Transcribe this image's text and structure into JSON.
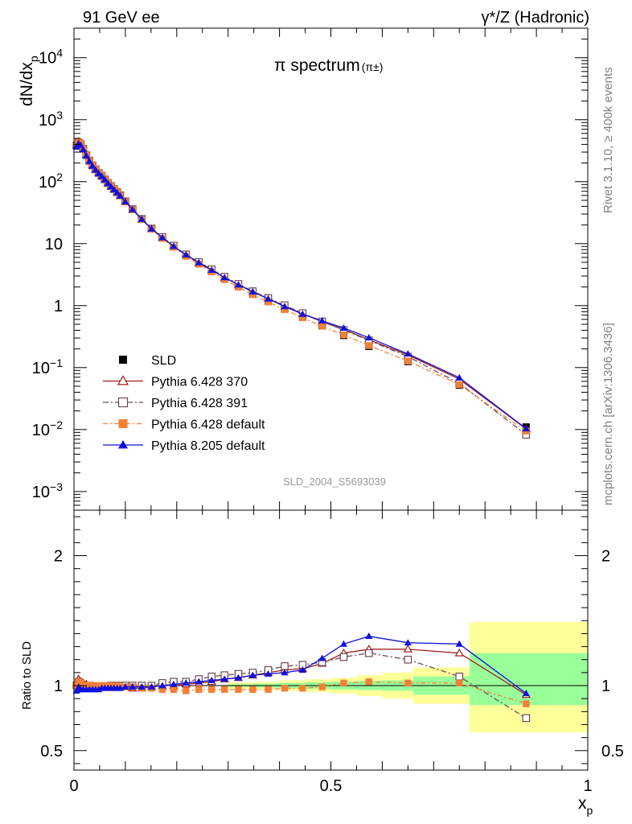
{
  "header": {
    "left": "91 GeV ee",
    "right_sup_label": "γ*/Z (Hadronic)"
  },
  "side_labels": {
    "top": "Rivet 3.1.10, ≥ 400k events",
    "bottom": "mcplots.cern.ch [arXiv:1306.3436]"
  },
  "chart_data": {
    "type": "line",
    "title": "π spectrum",
    "title_sub": "(π±)",
    "xlabel": "x",
    "xlabel_sub": "p",
    "ylabel": "dN/dx",
    "ylabel_sub": "p",
    "ratio_ylabel": "Ratio to SLD",
    "watermark": "SLD_2004_S5693039",
    "xlim": [
      0,
      1
    ],
    "ylim_log": [
      0.0005,
      30000
    ],
    "ratio_ylim": [
      0.35,
      2.35
    ],
    "x_ticks": [
      {
        "v": 0,
        "label": "0"
      },
      {
        "v": 0.5,
        "label": "0.5"
      },
      {
        "v": 1,
        "label": "1"
      }
    ],
    "y_ticks": [
      {
        "v": 0.001,
        "m": "10",
        "e": "−3"
      },
      {
        "v": 0.01,
        "m": "10",
        "e": "−2"
      },
      {
        "v": 0.1,
        "m": "10",
        "e": "−1"
      },
      {
        "v": 1,
        "m": "1",
        "e": ""
      },
      {
        "v": 10,
        "m": "10",
        "e": ""
      },
      {
        "v": 100,
        "m": "10",
        "e": "2"
      },
      {
        "v": 1000,
        "m": "10",
        "e": "3"
      },
      {
        "v": 10000,
        "m": "10",
        "e": "4"
      }
    ],
    "ratio_ticks": [
      {
        "v": 0.5,
        "label": "0.5"
      },
      {
        "v": 1,
        "label": "1"
      },
      {
        "v": 2,
        "label": "2"
      }
    ],
    "x": [
      0.005,
      0.009,
      0.013,
      0.018,
      0.024,
      0.03,
      0.036,
      0.042,
      0.048,
      0.054,
      0.06,
      0.066,
      0.072,
      0.078,
      0.084,
      0.09,
      0.1,
      0.114,
      0.132,
      0.151,
      0.172,
      0.194,
      0.218,
      0.243,
      0.268,
      0.293,
      0.32,
      0.348,
      0.378,
      0.41,
      0.445,
      0.483,
      0.525,
      0.574,
      0.65,
      0.75,
      0.88
    ],
    "sld": [
      380,
      420,
      400,
      340,
      270,
      220,
      185,
      160,
      140,
      125,
      110,
      96,
      85,
      76,
      68,
      60,
      48,
      36,
      25,
      17.5,
      12.5,
      9,
      6.5,
      4.8,
      3.6,
      2.7,
      2.05,
      1.55,
      1.18,
      0.88,
      0.65,
      0.47,
      0.33,
      0.22,
      0.125,
      0.052,
      0.011
    ],
    "band_edges": [
      0.3,
      0.35,
      0.4,
      0.45,
      0.5,
      0.55,
      0.6,
      0.66,
      0.77,
      1.0
    ],
    "stat_band": [
      [
        0.99,
        1.01
      ],
      [
        0.985,
        1.015
      ],
      [
        0.98,
        1.02
      ],
      [
        0.975,
        1.025
      ],
      [
        0.97,
        1.03
      ],
      [
        0.965,
        1.035
      ],
      [
        0.96,
        1.04
      ],
      [
        0.93,
        1.07
      ],
      [
        0.85,
        1.25
      ]
    ],
    "syst_band": [
      [
        0.975,
        1.025
      ],
      [
        0.97,
        1.03
      ],
      [
        0.96,
        1.04
      ],
      [
        0.95,
        1.05
      ],
      [
        0.94,
        1.06
      ],
      [
        0.92,
        1.08
      ],
      [
        0.9,
        1.1
      ],
      [
        0.86,
        1.14
      ],
      [
        0.64,
        1.49
      ]
    ],
    "legend": [
      {
        "name": "SLD"
      },
      {
        "name": "Pythia 6.428 370"
      },
      {
        "name": "Pythia 6.428 391"
      },
      {
        "name": "Pythia 6.428 default"
      },
      {
        "name": "Pythia 8.205 default"
      }
    ],
    "series": [
      {
        "name": "Pythia 6.428 370",
        "color": "#a01c1c",
        "dash": "none",
        "marker": "tri-open",
        "ratios": [
          1.02,
          1.05,
          1.03,
          1.02,
          1.01,
          1.0,
          1.0,
          0.99,
          0.99,
          0.99,
          0.99,
          0.99,
          0.99,
          0.99,
          0.99,
          0.99,
          0.99,
          0.98,
          0.98,
          0.99,
          1.0,
          1.0,
          1.01,
          1.02,
          1.03,
          1.05,
          1.06,
          1.08,
          1.1,
          1.12,
          1.13,
          1.17,
          1.25,
          1.28,
          1.28,
          1.25,
          0.93
        ]
      },
      {
        "name": "Pythia 6.428 391",
        "color": "#6e4a5c",
        "dash": "7 3 2 3",
        "marker": "sq-open",
        "ratios": [
          1.0,
          1.03,
          1.01,
          1.0,
          0.99,
          0.99,
          0.99,
          0.99,
          0.99,
          0.99,
          0.99,
          0.99,
          1.0,
          1.0,
          1.0,
          1.0,
          1.0,
          1.0,
          1.0,
          1.0,
          1.02,
          1.03,
          1.03,
          1.05,
          1.07,
          1.08,
          1.09,
          1.1,
          1.12,
          1.15,
          1.16,
          1.18,
          1.22,
          1.25,
          1.2,
          1.07,
          0.75
        ]
      },
      {
        "name": "Pythia 6.428 default",
        "color": "#f48036",
        "dash": "6 3 2 3",
        "marker": "sq-filled",
        "ratios": [
          1.0,
          1.03,
          1.02,
          1.0,
          1.0,
          1.0,
          1.0,
          1.0,
          1.0,
          1.0,
          1.0,
          1.0,
          1.0,
          1.0,
          1.0,
          0.99,
          0.99,
          0.99,
          0.98,
          0.98,
          0.97,
          0.97,
          0.96,
          0.97,
          0.97,
          0.97,
          0.97,
          0.97,
          0.97,
          0.98,
          0.98,
          0.99,
          1.02,
          1.03,
          1.02,
          1.02,
          0.86
        ]
      },
      {
        "name": "Pythia 8.205 default",
        "color": "#1010dd",
        "dash": "none",
        "marker": "tri-filled",
        "ratios": [
          0.96,
          0.99,
          0.97,
          0.97,
          0.97,
          0.97,
          0.97,
          0.97,
          0.97,
          0.98,
          0.98,
          0.98,
          0.98,
          0.98,
          0.98,
          0.98,
          0.99,
          0.99,
          0.99,
          0.99,
          1.0,
          1.01,
          1.02,
          1.03,
          1.04,
          1.05,
          1.06,
          1.08,
          1.09,
          1.1,
          1.12,
          1.21,
          1.32,
          1.38,
          1.33,
          1.32,
          0.94
        ]
      }
    ]
  }
}
